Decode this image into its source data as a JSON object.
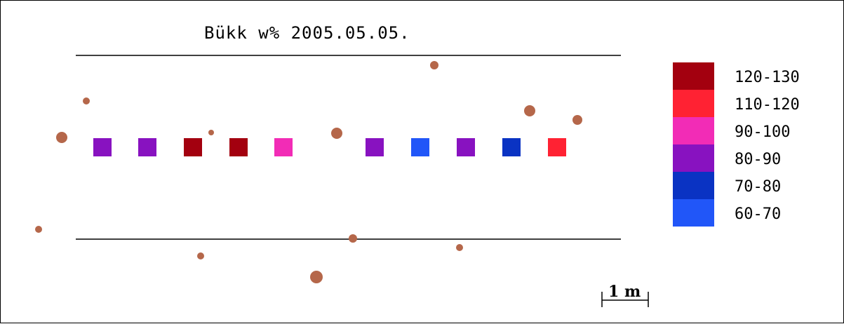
{
  "title": "Bükk w% 2005.05.05.",
  "scale_label": "1 m",
  "legend": [
    {
      "label": "120-130",
      "color": "#a3000f"
    },
    {
      "label": "110-120",
      "color": "#ff2233"
    },
    {
      "label": "90-100",
      "color": "#f22cb6"
    },
    {
      "label": "80-90",
      "color": "#8812c0"
    },
    {
      "label": "70-80",
      "color": "#0a33c3"
    },
    {
      "label": "60-70",
      "color": "#2156f8"
    }
  ],
  "samples": [
    {
      "class": "80-90"
    },
    {
      "class": "80-90"
    },
    {
      "class": "120-130"
    },
    {
      "class": "120-130"
    },
    {
      "class": "90-100"
    },
    {
      "class": "80-90"
    },
    {
      "class": "60-70"
    },
    {
      "class": "80-90"
    },
    {
      "class": "70-80"
    },
    {
      "class": "110-120"
    }
  ],
  "tree_color": "#b5674a"
}
